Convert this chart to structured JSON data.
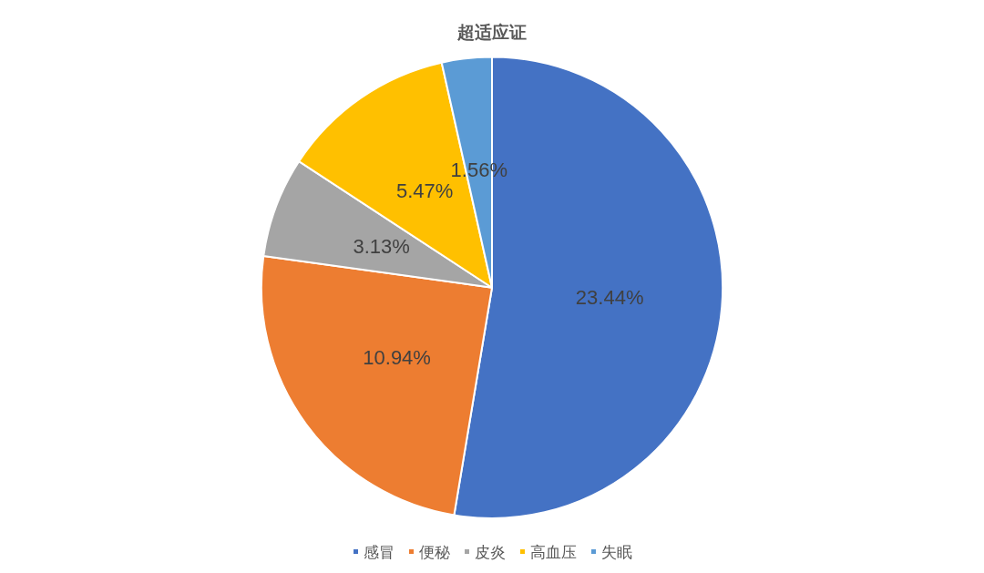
{
  "chart_data": {
    "type": "pie",
    "title": "超适应证",
    "categories": [
      "感冒",
      "便秘",
      "皮炎",
      "高血压",
      "失眠"
    ],
    "values": [
      23.44,
      10.94,
      3.13,
      5.47,
      1.56
    ],
    "value_labels": [
      "23.44%",
      "10.94%",
      "3.13%",
      "5.47%",
      "1.56%"
    ],
    "colors": [
      "#4472c4",
      "#ed7d31",
      "#a5a5a5",
      "#ffc000",
      "#5b9bd5"
    ],
    "legend": "bottom"
  }
}
